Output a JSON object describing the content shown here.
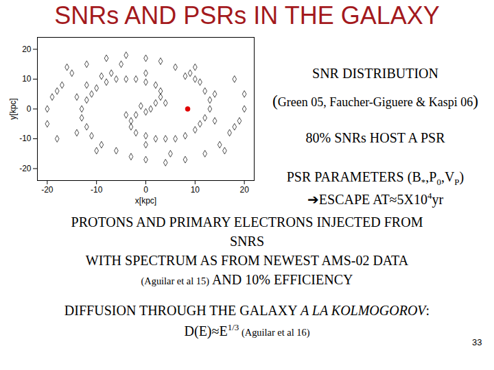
{
  "slide": {
    "title": "SNRs AND PSRs IN THE GALAXY",
    "page": "33",
    "right_lines": [
      [
        {
          "t": "SNR DISTRIBUTION"
        }
      ],
      [
        {
          "t": "(",
          "big": true
        },
        {
          "t": "Green 05, Faucher-Giguere & Kaspi 06"
        },
        {
          "t": ")",
          "big": true
        }
      ],
      [
        {
          "t": "80% SNRs HOST A PSR"
        }
      ],
      [
        {
          "t": "PSR PARAMETERS (B"
        },
        {
          "t": "*",
          "sub": true
        },
        {
          "t": ",P"
        },
        {
          "t": "0",
          "sub": true
        },
        {
          "t": ",V"
        },
        {
          "t": "P",
          "sub": true
        },
        {
          "t": ")"
        }
      ],
      [
        {
          "t": "➔ESCAPE AT≈5X10"
        },
        {
          "t": "4",
          "sup": true
        },
        {
          "t": "yr"
        }
      ]
    ],
    "bottom_groups": [
      [
        [
          {
            "t": "PROTONS AND PRIMARY ELECTRONS INJECTED FROM"
          }
        ],
        [
          {
            "t": "SNRS"
          }
        ],
        [
          {
            "t": "WITH SPECTRUM AS FROM NEWEST AMS-02 DATA"
          }
        ],
        [
          {
            "t": "(Aguilar et al 15)",
            "small": true
          },
          {
            "t": " AND 10% EFFICIENCY"
          }
        ]
      ],
      [
        [
          {
            "t": "DIFFUSION THROUGH THE GALAXY "
          },
          {
            "t": "A LA KOLMOGOROV",
            "italic": true
          },
          {
            "t": ":"
          }
        ],
        [
          {
            "t": "D(E)≈E"
          },
          {
            "t": "1/3",
            "sup": true
          },
          {
            "t": " (Aguilar et al 16)",
            "small": true
          }
        ]
      ]
    ]
  },
  "chart_data": {
    "type": "scatter",
    "x_label": "x[kpc]",
    "y_label": "y[kpc]",
    "xlim": [
      -22,
      22
    ],
    "ylim": [
      -24,
      24
    ],
    "xticks": [
      -20,
      -10,
      0,
      10,
      20
    ],
    "yticks": [
      -20,
      -10,
      0,
      10,
      20
    ],
    "grid": false,
    "series": [
      {
        "color": "#000000",
        "marker": "diamond",
        "x": [
          2,
          3,
          3,
          2,
          0,
          -2,
          -4,
          -6,
          -8,
          -10,
          -11,
          -12,
          -13,
          -13,
          -12,
          -11,
          -9,
          -6,
          -3,
          0,
          4,
          8,
          12,
          15,
          17,
          19,
          20,
          20,
          18,
          -2,
          -3,
          -3,
          -2,
          0,
          2,
          4,
          6,
          8,
          10,
          11,
          12,
          13,
          13,
          12,
          11,
          9,
          6,
          3,
          0,
          -4,
          -8,
          -12,
          -15,
          -17,
          -19,
          -20,
          -20,
          -18,
          -9,
          -7,
          -12,
          -14,
          8,
          10,
          14,
          14,
          -14,
          0,
          0,
          5,
          -5,
          16,
          -16,
          1,
          -1,
          0,
          4,
          -4,
          -10,
          10,
          18,
          -18
        ],
        "y": [
          2,
          4,
          6,
          8,
          9,
          10,
          10,
          10,
          9,
          7,
          5,
          3,
          0,
          -3,
          -6,
          -9,
          -12,
          -14,
          -16,
          -17,
          -18,
          -17,
          -15,
          -12,
          -8,
          -4,
          0,
          5,
          10,
          -2,
          -4,
          -6,
          -8,
          -9,
          -10,
          -10,
          -10,
          -9,
          -7,
          -5,
          -3,
          0,
          3,
          6,
          9,
          12,
          14,
          16,
          17,
          18,
          17,
          15,
          12,
          8,
          4,
          0,
          -5,
          -10,
          11,
          12,
          8,
          -8,
          11,
          10,
          -4,
          5,
          4,
          12,
          -12,
          -15,
          15,
          -14,
          14,
          0,
          1,
          -1,
          2,
          -2,
          -14,
          14,
          -6,
          6
        ]
      },
      {
        "color": "#e00000",
        "marker": "circle",
        "x": [
          8.5
        ],
        "y": [
          0
        ]
      }
    ]
  }
}
